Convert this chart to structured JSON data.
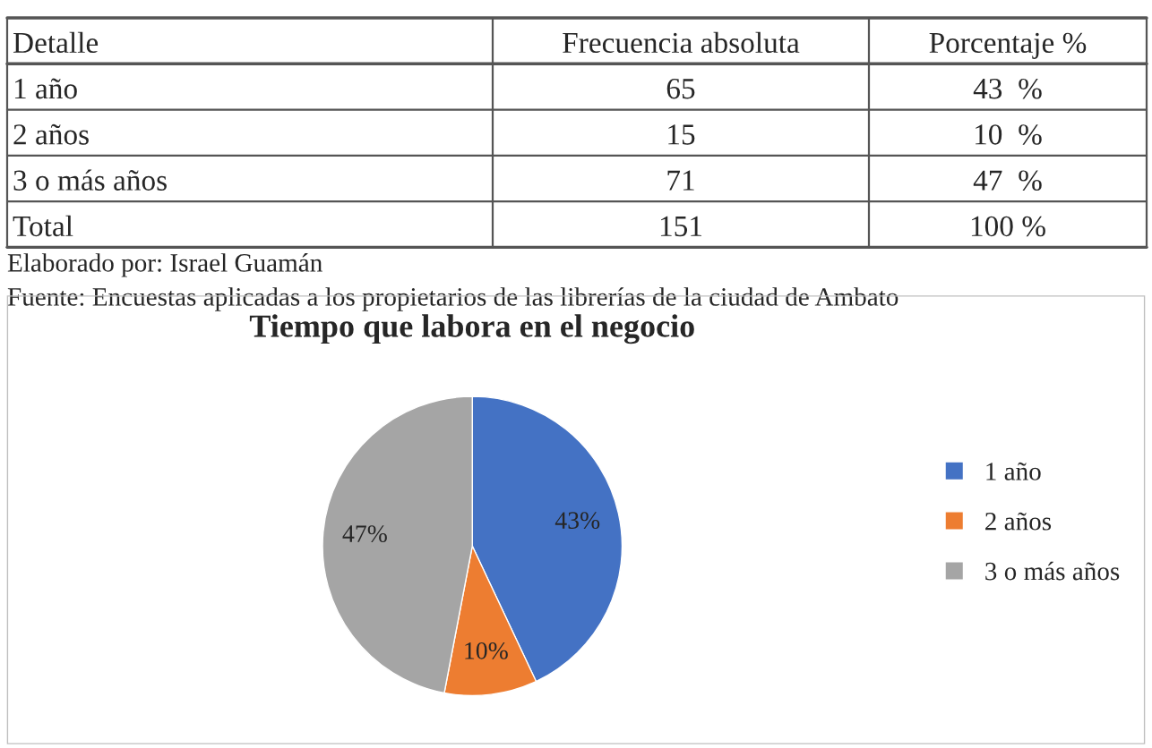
{
  "chart_data": [
    {
      "type": "other",
      "categories": [
        "Detalle",
        "Frecuencia absoluta",
        "Porcentaje %"
      ],
      "y_categories": [
        "1 año",
        "2 años",
        "3 o más años",
        "Total"
      ],
      "annotations": [
        "65",
        "43  %",
        "15",
        "10  %",
        "71",
        "47  %",
        "151",
        "100 %",
        "Elaborado por: Israel Guamán",
        "Fuente: Encuestas aplicadas a los propietarios de las librerías de la ciudad de Ambato"
      ]
    },
    {
      "type": "pie",
      "title": "Tiempo que labora en el negocio",
      "categories": [
        "1 año",
        "2 años",
        "3 o más años"
      ],
      "values": [
        43,
        10,
        47
      ],
      "colors": [
        "#4472c4",
        "#ed7d31",
        "#a5a5a5"
      ],
      "value_labels": [
        "43%",
        "10%",
        "47%"
      ],
      "legend": "right"
    }
  ]
}
